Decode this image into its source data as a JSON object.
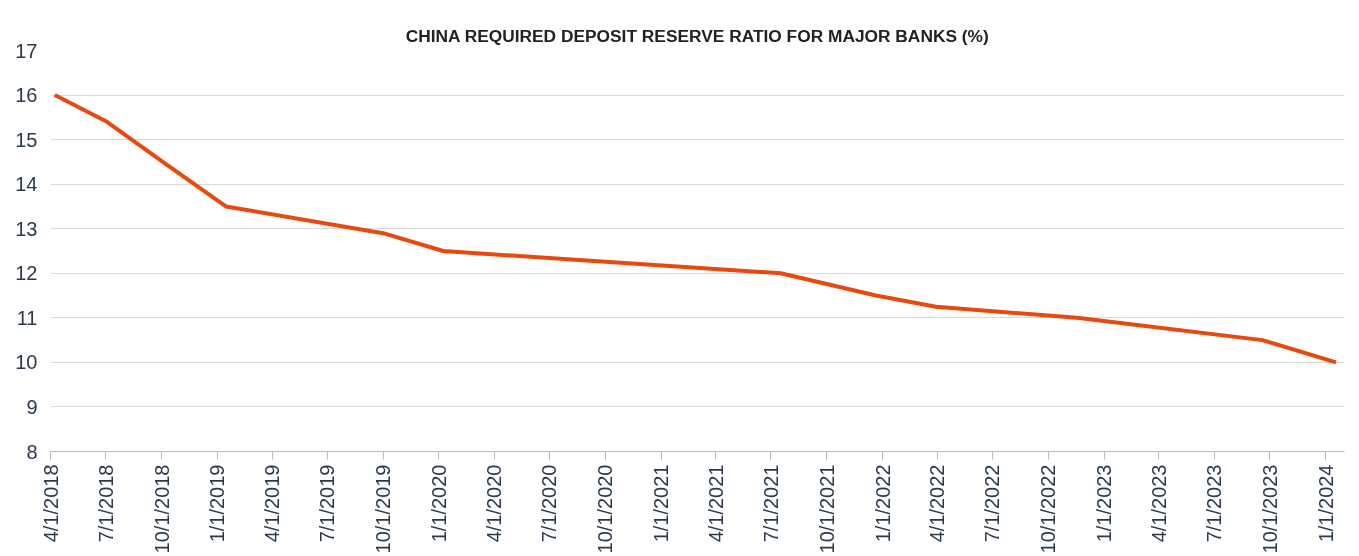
{
  "chart_data": {
    "type": "line",
    "title": "CHINA REQUIRED DEPOSIT RESERVE RATIO FOR MAJOR BANKS (%)",
    "x": [
      "2018-04-08",
      "2018-07-03",
      "2018-10-03",
      "2019-01-15",
      "2019-10-01",
      "2020-01-08",
      "2021-07-17",
      "2021-12-21",
      "2022-03-30",
      "2022-11-17",
      "2023-09-19",
      "2024-01-18"
    ],
    "series": [
      {
        "color": "#e8490f",
        "values": [
          16.0,
          15.4,
          14.5,
          13.5,
          12.9,
          12.5,
          12.0,
          11.5,
          11.25,
          11.0,
          10.5,
          10.0
        ]
      }
    ],
    "xlim": [
      "2018-04-01",
      "2024-02-01"
    ],
    "xticks": [
      {
        "value": "2018-04-01",
        "label": "4/1/2018"
      },
      {
        "value": "2018-07-01",
        "label": "7/1/2018"
      },
      {
        "value": "2018-10-01",
        "label": "10/1/2018"
      },
      {
        "value": "2019-01-01",
        "label": "1/1/2019"
      },
      {
        "value": "2019-04-01",
        "label": "4/1/2019"
      },
      {
        "value": "2019-07-01",
        "label": "7/1/2019"
      },
      {
        "value": "2019-10-01",
        "label": "10/1/2019"
      },
      {
        "value": "2020-01-01",
        "label": "1/1/2020"
      },
      {
        "value": "2020-04-01",
        "label": "4/1/2020"
      },
      {
        "value": "2020-07-01",
        "label": "7/1/2020"
      },
      {
        "value": "2020-10-01",
        "label": "10/1/2020"
      },
      {
        "value": "2021-01-01",
        "label": "1/1/2021"
      },
      {
        "value": "2021-04-01",
        "label": "4/1/2021"
      },
      {
        "value": "2021-07-01",
        "label": "7/1/2021"
      },
      {
        "value": "2021-10-01",
        "label": "10/1/2021"
      },
      {
        "value": "2022-01-01",
        "label": "1/1/2022"
      },
      {
        "value": "2022-04-01",
        "label": "4/1/2022"
      },
      {
        "value": "2022-07-01",
        "label": "7/1/2022"
      },
      {
        "value": "2022-10-01",
        "label": "10/1/2022"
      },
      {
        "value": "2023-01-01",
        "label": "1/1/2023"
      },
      {
        "value": "2023-04-01",
        "label": "4/1/2023"
      },
      {
        "value": "2023-07-01",
        "label": "7/1/2023"
      },
      {
        "value": "2023-10-01",
        "label": "10/1/2023"
      },
      {
        "value": "2024-01-01",
        "label": "1/1/2024"
      }
    ],
    "ylim": [
      8,
      17
    ],
    "yticks": [
      8,
      9,
      10,
      11,
      12,
      13,
      14,
      15,
      16,
      17
    ],
    "grid": "y",
    "line_style": "solid",
    "marker": "none"
  }
}
